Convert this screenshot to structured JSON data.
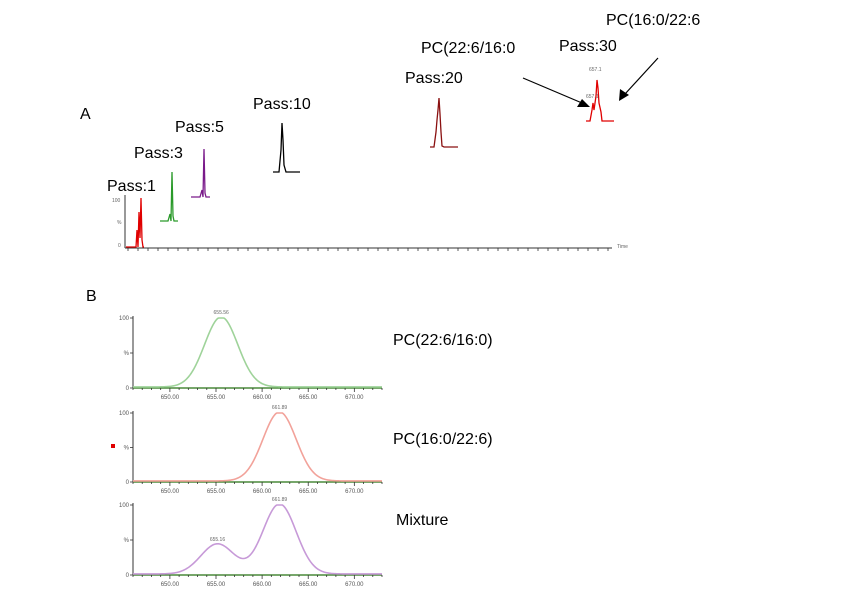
{
  "panel_a": {
    "letter": "A",
    "x_axis_title": "Time",
    "pass_labels": [
      "Pass:1",
      "Pass:3",
      "Pass:5",
      "Pass:10",
      "Pass:20",
      "Pass:30"
    ],
    "annotations": {
      "isomer_1": "PC(22:6/16:0",
      "isomer_2": "PC(16:0/22:6"
    }
  },
  "panel_b": {
    "letter": "B",
    "trace_labels": [
      "PC(22:6/16:0)",
      "PC(16:0/22:6)",
      "Mixture"
    ],
    "peak_labels": [
      "655.56",
      "661.89",
      "655.16",
      "661.89"
    ],
    "ytick_labels": [
      "100",
      "50",
      "0"
    ],
    "xtick_labels": [
      "650.00",
      "655.00",
      "660.00",
      "665.00",
      "670.00"
    ]
  },
  "chart_data": [
    {
      "type": "line",
      "title": "",
      "xlabel": "Time",
      "ylabel": "",
      "series": [
        {
          "name": "Pass:1",
          "color": "#e00000",
          "peak_x": 1
        },
        {
          "name": "Pass:3",
          "color": "#2a9a2a",
          "peak_x": 3
        },
        {
          "name": "Pass:5",
          "color": "#7a1a8a",
          "peak_x": 5
        },
        {
          "name": "Pass:10",
          "color": "#000000",
          "peak_x": 10
        },
        {
          "name": "Pass:20",
          "color": "#8a1010",
          "peak_x": 20
        },
        {
          "name": "Pass:30",
          "color": "#e00000",
          "peak_x": 30
        }
      ],
      "legend": "none",
      "grid": false
    },
    {
      "type": "line",
      "xlabel": "",
      "ylabel": "",
      "xlim": [
        646,
        673
      ],
      "ylim": [
        0,
        100
      ],
      "xticks": [
        650,
        655,
        660,
        665,
        670
      ],
      "yticks": [
        0,
        50,
        100
      ],
      "series": [
        {
          "name": "PC(22:6/16:0)",
          "color": "#9fd39a",
          "peaks": [
            {
              "center": 655.56,
              "height": 100,
              "width": 1.8
            }
          ]
        }
      ]
    },
    {
      "type": "line",
      "xlabel": "",
      "ylabel": "",
      "xlim": [
        646,
        673
      ],
      "ylim": [
        0,
        100
      ],
      "xticks": [
        650,
        655,
        660,
        665,
        670
      ],
      "yticks": [
        0,
        50,
        100
      ],
      "series": [
        {
          "name": "PC(16:0/22:6)",
          "color": "#f2a29a",
          "peaks": [
            {
              "center": 661.89,
              "height": 100,
              "width": 1.8
            }
          ]
        }
      ]
    },
    {
      "type": "line",
      "xlabel": "",
      "ylabel": "",
      "xlim": [
        646,
        673
      ],
      "ylim": [
        0,
        100
      ],
      "xticks": [
        650,
        655,
        660,
        665,
        670
      ],
      "yticks": [
        0,
        50,
        100
      ],
      "series": [
        {
          "name": "Mixture",
          "color": "#c79ad8",
          "peaks": [
            {
              "center": 655.16,
              "height": 43,
              "width": 1.8
            },
            {
              "center": 661.89,
              "height": 100,
              "width": 1.8
            }
          ]
        }
      ]
    }
  ]
}
